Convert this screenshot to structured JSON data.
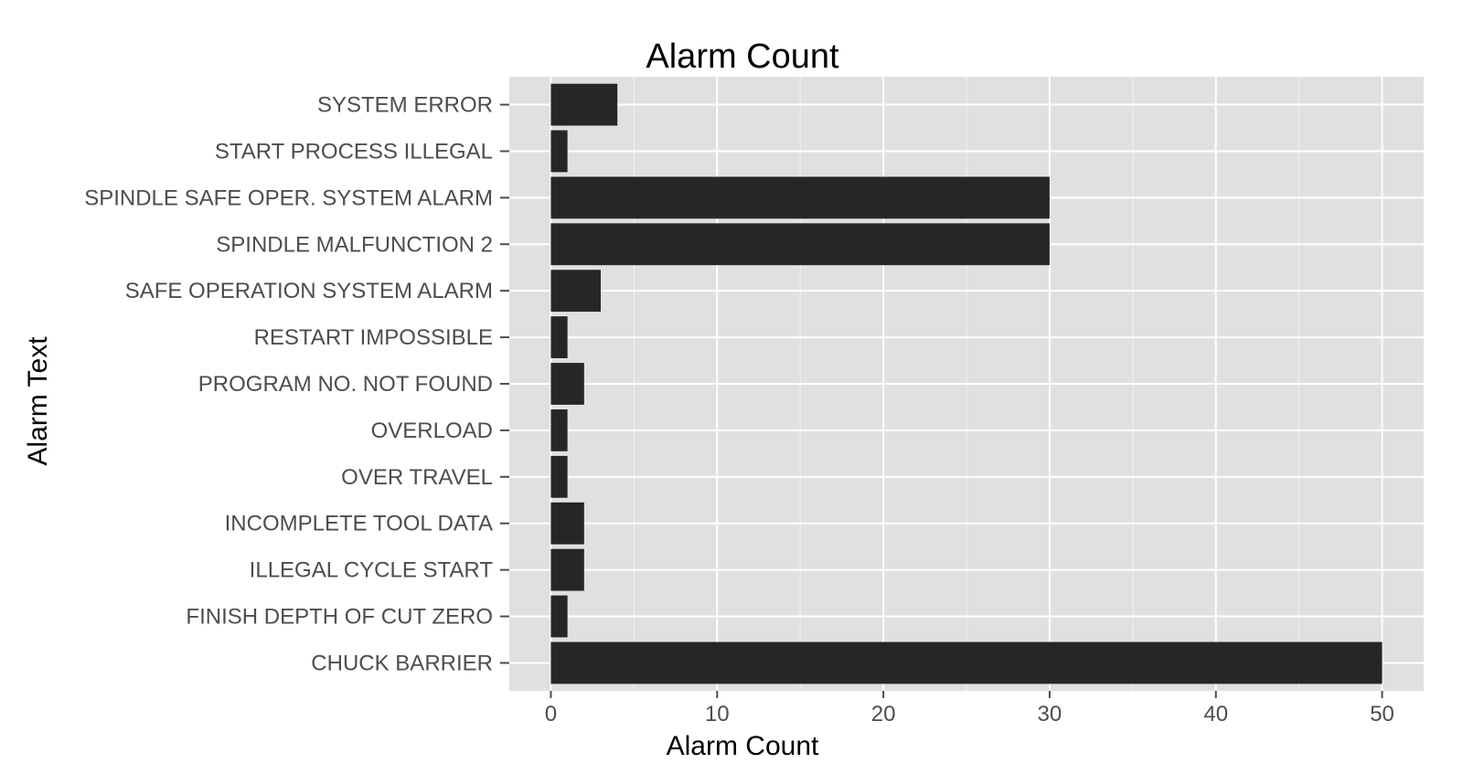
{
  "chart_data": {
    "type": "bar",
    "orientation": "horizontal",
    "title": "Alarm Count",
    "xlabel": "Alarm Count",
    "ylabel": "Alarm Text",
    "categories": [
      "CHUCK BARRIER",
      "FINISH DEPTH OF CUT ZERO",
      "ILLEGAL CYCLE START",
      "INCOMPLETE TOOL DATA",
      "OVER TRAVEL",
      "OVERLOAD",
      "PROGRAM NO. NOT FOUND",
      "RESTART IMPOSSIBLE",
      "SAFE OPERATION SYSTEM ALARM",
      "SPINDLE MALFUNCTION 2",
      "SPINDLE SAFE OPER. SYSTEM ALARM",
      "START PROCESS ILLEGAL",
      "SYSTEM ERROR"
    ],
    "values": [
      50,
      1,
      2,
      2,
      1,
      1,
      2,
      1,
      3,
      30,
      30,
      1,
      4
    ],
    "xticks": [
      0,
      10,
      20,
      30,
      40,
      50
    ],
    "xlim": [
      -2.5,
      52.5
    ],
    "grid": true,
    "colors": {
      "bar": "#262626",
      "panel": "#e0e0e0",
      "grid_major": "#ffffff",
      "grid_minor": "#f2f2f2"
    }
  }
}
